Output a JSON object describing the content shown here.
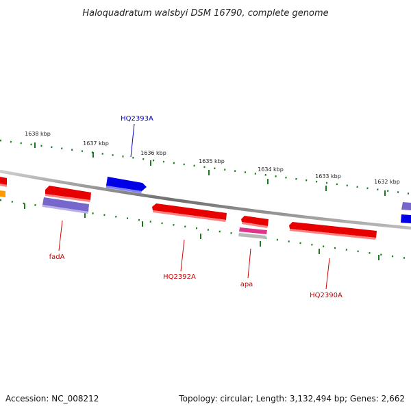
{
  "title": "Haloquadratum walsbyi DSM 16790, complete genome",
  "scale_ticks": [
    "1638 kbp",
    "1637 kbp",
    "1636 kbp",
    "1635 kbp",
    "1634 kbp",
    "1633 kbp",
    "1632 kbp"
  ],
  "gene_labels": {
    "HQ2393A": "HQ2393A",
    "fadA": "fadA",
    "HQ2392A": "HQ2392A",
    "apa": "apa",
    "HQ2390A": "HQ2390A"
  },
  "footer": {
    "accession": "Accession: NC_008212",
    "summary": "Topology: circular; Length: 3,132,494 bp; Genes: 2,662"
  },
  "colors": {
    "background": "#ffffff",
    "backbone": "#8a8a8a",
    "tick_mark": "#1a7a1a",
    "gene_forward": "#0000e6",
    "gene_reverse": "#e60000",
    "gene_lavender": "#7766cc",
    "gene_orange": "#ff9900",
    "gene_magenta": "#e0338a",
    "gene_grey": "#b8b8b8",
    "label_blue": "#0000cc",
    "label_red": "#cc0000"
  }
}
